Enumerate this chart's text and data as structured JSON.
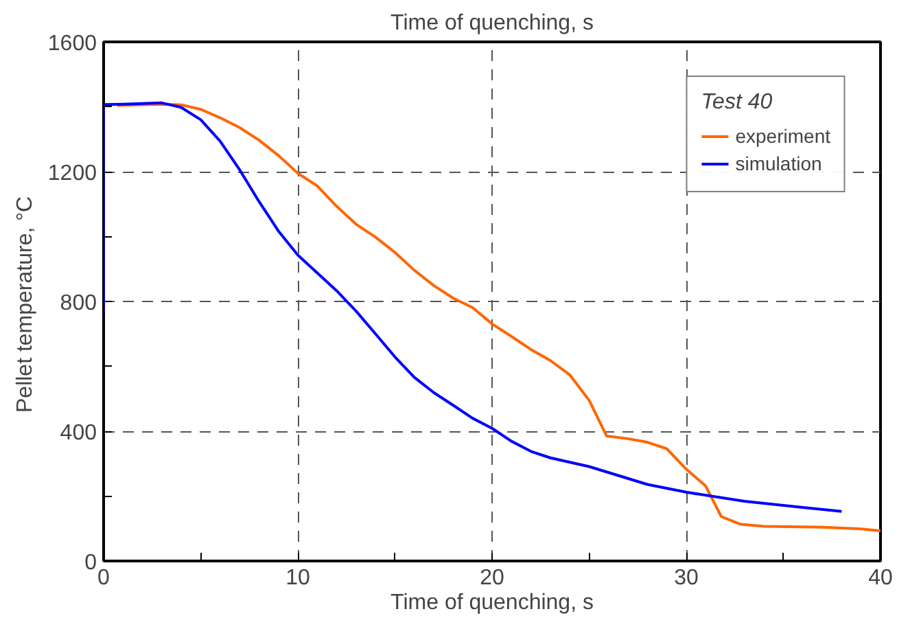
{
  "chart_data": {
    "type": "line",
    "title": "Time of quenching, s",
    "xlabel": "Time of quenching, s",
    "ylabel": "Pellet  temperature, °C",
    "legend_title": "Test 40",
    "legend": "top right",
    "grid": true,
    "xlim": [
      0,
      40
    ],
    "ylim": [
      0,
      1600
    ],
    "xticks": [
      0,
      {
        "value": 5,
        "label": null
      },
      10,
      {
        "value": 15,
        "label": null
      },
      20,
      {
        "value": 25,
        "label": null
      },
      30,
      {
        "value": 35,
        "label": null
      },
      40
    ],
    "yticks": [
      0,
      {
        "value": 200,
        "label": null
      },
      400,
      {
        "value": 600,
        "label": null
      },
      800,
      {
        "value": 1000,
        "label": null
      },
      1200,
      {
        "value": 1400,
        "label": null
      },
      1600
    ],
    "series": [
      {
        "name": "experiment",
        "color": "#ff6600",
        "x": [
          0.7,
          3,
          4,
          5,
          6,
          7,
          8,
          9,
          10,
          11,
          12,
          13,
          14,
          15,
          16,
          17,
          18,
          19,
          20,
          21,
          22,
          23,
          24,
          25,
          25.9,
          27,
          28,
          29,
          30,
          31,
          31.8,
          32.8,
          34,
          37,
          39,
          40
        ],
        "values": [
          1404,
          1408,
          1406,
          1392,
          1366,
          1336,
          1297,
          1250,
          1195,
          1156,
          1093,
          1038,
          998,
          951,
          896,
          849,
          810,
          781,
          731,
          692,
          652,
          618,
          574,
          495,
          385,
          377,
          366,
          346,
          283,
          231,
          137,
          113,
          107,
          104,
          99,
          93
        ]
      },
      {
        "name": "simulation",
        "color": "#0000ff",
        "x": [
          0,
          0,
          1,
          3,
          4,
          5,
          6,
          7,
          8,
          9,
          10,
          11,
          12,
          13,
          14,
          15,
          16,
          17,
          18,
          19,
          20,
          21,
          22,
          23,
          25,
          28,
          30,
          33,
          36,
          38
        ],
        "values": [
          770,
          1407,
          1408,
          1412,
          1398,
          1360,
          1294,
          1206,
          1108,
          1017,
          943,
          888,
          833,
          770,
          700,
          629,
          566,
          519,
          480,
          440,
          409,
          369,
          338,
          318,
          291,
          236,
          212,
          184,
          165,
          153
        ]
      }
    ]
  }
}
